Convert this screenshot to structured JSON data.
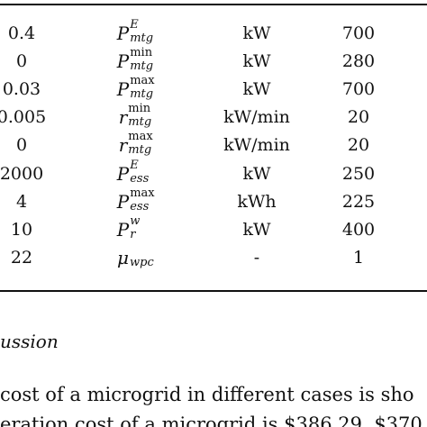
{
  "table": {
    "rows": [
      {
        "col1": "0.4",
        "sym_base": "P",
        "sym_sup": "E",
        "sym_sup_italic": true,
        "sym_sub": "mtg",
        "unit": "kW",
        "value": "700"
      },
      {
        "col1": "0",
        "sym_base": "P",
        "sym_sup": "min",
        "sym_sup_italic": false,
        "sym_sub": "mtg",
        "unit": "kW",
        "value": "280"
      },
      {
        "col1": "0.03",
        "sym_base": "P",
        "sym_sup": "max",
        "sym_sup_italic": false,
        "sym_sub": "mtg",
        "unit": "kW",
        "value": "700"
      },
      {
        "col1": "0.005",
        "sym_base": "r",
        "sym_sup": "min",
        "sym_sup_italic": false,
        "sym_sub": "mtg",
        "unit": "kW/min",
        "value": "20"
      },
      {
        "col1": "0",
        "sym_base": "r",
        "sym_sup": "max",
        "sym_sup_italic": false,
        "sym_sub": "mtg",
        "unit": "kW/min",
        "value": "20"
      },
      {
        "col1": "2000",
        "sym_base": "P",
        "sym_sup": "E",
        "sym_sup_italic": true,
        "sym_sub": "ess",
        "unit": "kW",
        "value": "250"
      },
      {
        "col1": "4",
        "sym_base": "P",
        "sym_sup": "max",
        "sym_sup_italic": false,
        "sym_sub": "ess",
        "unit": "kWh",
        "value": "225"
      },
      {
        "col1": "10",
        "sym_base": "P",
        "sym_sup": "w",
        "sym_sup_italic": true,
        "sym_sub": "r",
        "unit": "kW",
        "value": "400"
      },
      {
        "col1": "22",
        "sym_base": "μ",
        "sym_sup": "",
        "sym_sup_italic": false,
        "sym_sub": "wpc",
        "unit": "-",
        "value": "1"
      }
    ]
  },
  "section_title": "ussion",
  "paragraph": {
    "line1": "cost of a microgrid in different cases is sho",
    "line2": "eration cost of a microgrid is $386.29, $370"
  }
}
